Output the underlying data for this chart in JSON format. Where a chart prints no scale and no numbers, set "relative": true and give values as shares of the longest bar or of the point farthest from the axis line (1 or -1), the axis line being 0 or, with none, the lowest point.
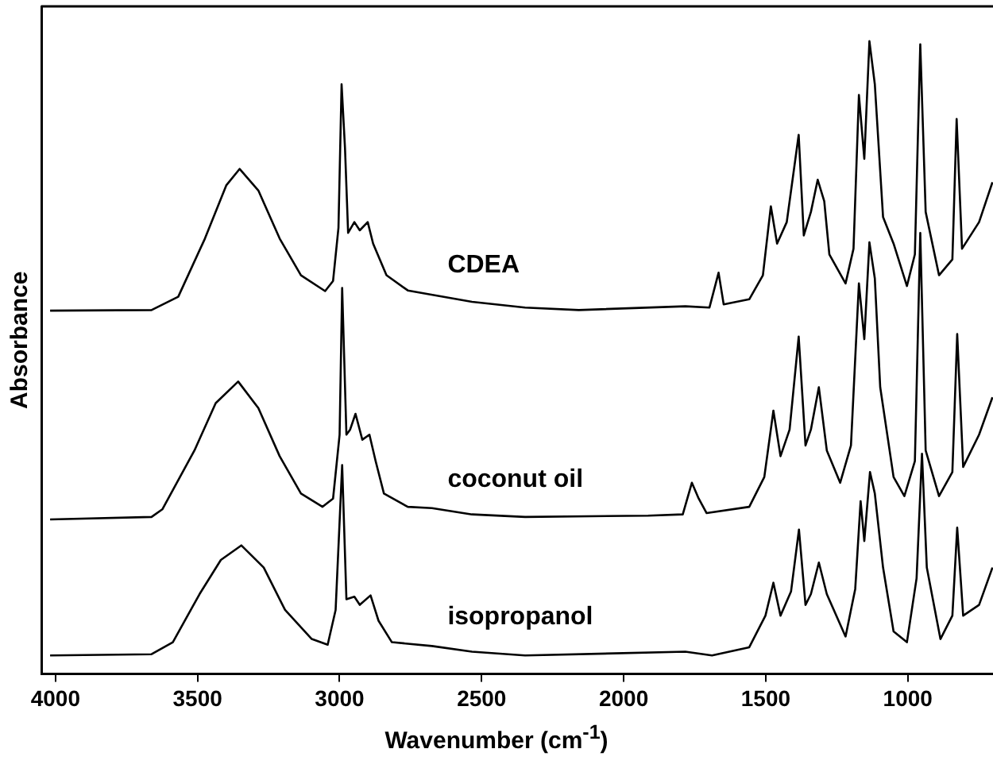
{
  "chart_data": {
    "type": "line",
    "relative": true,
    "xlabel": "Wavenumber (cm$^{-1}$)",
    "ylabel": "Absorbance",
    "xlim": [
      4050,
      700
    ],
    "xticks": [
      4000,
      3500,
      3000,
      2500,
      2000,
      1500,
      1000
    ],
    "grid": false,
    "legend": false,
    "marker": "none",
    "line_style": "solid",
    "series": [
      {
        "name": "CDEA",
        "color": "#000000",
        "x": [
          4019,
          3662,
          3568,
          3474,
          3399,
          3352,
          3286,
          3211,
          3136,
          3051,
          3023,
          3004,
          2993,
          2981,
          2970,
          2948,
          2929,
          2901,
          2882,
          2835,
          2760,
          2685,
          2534,
          2347,
          2158,
          1783,
          1698,
          1666,
          1648,
          1558,
          1510,
          1482,
          1460,
          1426,
          1384,
          1366,
          1341,
          1317,
          1294,
          1276,
          1219,
          1191,
          1172,
          1153,
          1135,
          1116,
          1087,
          1050,
          1003,
          975,
          956,
          937,
          890,
          843,
          828,
          809,
          749,
          702
        ],
        "values": [
          0.574,
          0.575,
          0.596,
          0.688,
          0.772,
          0.798,
          0.764,
          0.688,
          0.63,
          0.605,
          0.621,
          0.705,
          0.932,
          0.831,
          0.697,
          0.714,
          0.701,
          0.714,
          0.68,
          0.63,
          0.606,
          0.6,
          0.588,
          0.579,
          0.575,
          0.581,
          0.579,
          0.634,
          0.584,
          0.592,
          0.63,
          0.739,
          0.68,
          0.714,
          0.852,
          0.693,
          0.73,
          0.781,
          0.747,
          0.663,
          0.617,
          0.672,
          0.915,
          0.814,
          1.0,
          0.932,
          0.722,
          0.68,
          0.613,
          0.663,
          0.995,
          0.73,
          0.63,
          0.655,
          0.877,
          0.672,
          0.714,
          0.777
        ]
      },
      {
        "name": "coconut oil",
        "color": "#000000",
        "x": [
          4019,
          3662,
          3624,
          3511,
          3436,
          3357,
          3286,
          3211,
          3136,
          3060,
          3023,
          3000,
          2991,
          2976,
          2963,
          2944,
          2920,
          2895,
          2873,
          2844,
          2760,
          2675,
          2534,
          2347,
          1914,
          1792,
          1760,
          1736,
          1708,
          1558,
          1505,
          1473,
          1448,
          1416,
          1384,
          1360,
          1341,
          1313,
          1285,
          1238,
          1200,
          1172,
          1153,
          1135,
          1116,
          1097,
          1050,
          1012,
          975,
          956,
          937,
          890,
          843,
          826,
          805,
          749,
          702
        ],
        "values": [
          0.244,
          0.248,
          0.26,
          0.353,
          0.428,
          0.462,
          0.42,
          0.344,
          0.285,
          0.264,
          0.277,
          0.378,
          0.61,
          0.378,
          0.386,
          0.411,
          0.37,
          0.378,
          0.336,
          0.285,
          0.264,
          0.262,
          0.252,
          0.248,
          0.25,
          0.252,
          0.302,
          0.277,
          0.254,
          0.264,
          0.311,
          0.416,
          0.344,
          0.386,
          0.533,
          0.361,
          0.386,
          0.453,
          0.353,
          0.302,
          0.361,
          0.617,
          0.529,
          0.682,
          0.625,
          0.453,
          0.311,
          0.281,
          0.336,
          0.697,
          0.353,
          0.281,
          0.319,
          0.537,
          0.327,
          0.378,
          0.437
        ]
      },
      {
        "name": "isopropanol",
        "color": "#000000",
        "x": [
          4019,
          3662,
          3587,
          3493,
          3418,
          3346,
          3267,
          3192,
          3098,
          3042,
          3014,
          2991,
          2976,
          2948,
          2929,
          2891,
          2863,
          2816,
          2675,
          2534,
          2347,
          1783,
          1689,
          1558,
          1501,
          1473,
          1448,
          1411,
          1383,
          1360,
          1341,
          1313,
          1285,
          1219,
          1185,
          1166,
          1153,
          1133,
          1116,
          1087,
          1050,
          1003,
          969,
          950,
          933,
          885,
          843,
          826,
          805,
          749,
          702
        ],
        "values": [
          0.029,
          0.031,
          0.05,
          0.126,
          0.18,
          0.203,
          0.168,
          0.101,
          0.055,
          0.046,
          0.101,
          0.33,
          0.118,
          0.122,
          0.109,
          0.124,
          0.084,
          0.05,
          0.044,
          0.035,
          0.029,
          0.035,
          0.029,
          0.042,
          0.092,
          0.144,
          0.092,
          0.13,
          0.228,
          0.109,
          0.126,
          0.176,
          0.126,
          0.059,
          0.134,
          0.273,
          0.21,
          0.319,
          0.285,
          0.168,
          0.067,
          0.05,
          0.151,
          0.348,
          0.168,
          0.055,
          0.092,
          0.231,
          0.092,
          0.109,
          0.168
        ]
      }
    ]
  }
}
